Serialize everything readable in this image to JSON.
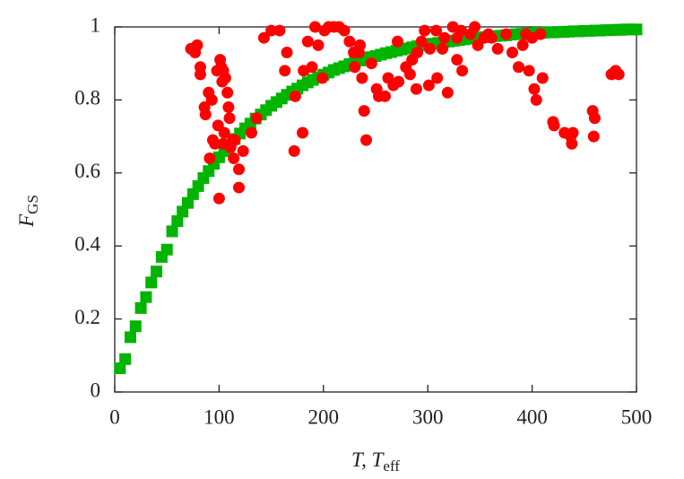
{
  "chart_data": {
    "type": "scatter",
    "xlabel": {
      "text": "T, T",
      "subscript": "eff"
    },
    "ylabel": {
      "text": "F",
      "subscript": "GS"
    },
    "xlim": [
      0,
      500
    ],
    "xticks": [
      0,
      100,
      200,
      300,
      400,
      500
    ],
    "ylim": [
      0,
      1
    ],
    "yticks": [
      0,
      0.2,
      0.4,
      0.6,
      0.8,
      1
    ],
    "series": [
      {
        "color": "#00b400",
        "marker": "square",
        "x": [
          5,
          10,
          15,
          20,
          25,
          30,
          35,
          40,
          45,
          50,
          55,
          60,
          65,
          70,
          75,
          80,
          85,
          90,
          95,
          100,
          105,
          110,
          115,
          120,
          125,
          130,
          135,
          140,
          145,
          150,
          155,
          160,
          165,
          170,
          175,
          180,
          185,
          190,
          195,
          200,
          205,
          210,
          215,
          220,
          225,
          230,
          235,
          240,
          245,
          250,
          255,
          260,
          265,
          270,
          275,
          280,
          285,
          290,
          295,
          300,
          305,
          310,
          315,
          320,
          325,
          330,
          335,
          340,
          345,
          350,
          355,
          360,
          365,
          370,
          375,
          380,
          385,
          390,
          395,
          400,
          405,
          410,
          415,
          420,
          425,
          430,
          435,
          440,
          445,
          450,
          455,
          460,
          465,
          470,
          475,
          480,
          485,
          490,
          495,
          500
        ],
        "values": [
          0.065,
          0.09,
          0.15,
          0.18,
          0.23,
          0.26,
          0.3,
          0.33,
          0.37,
          0.39,
          0.44,
          0.468,
          0.494,
          0.518,
          0.542,
          0.564,
          0.586,
          0.605,
          0.625,
          0.643,
          0.66,
          0.677,
          0.693,
          0.708,
          0.722,
          0.735,
          0.749,
          0.76,
          0.772,
          0.784,
          0.794,
          0.804,
          0.814,
          0.823,
          0.831,
          0.84,
          0.848,
          0.855,
          0.862,
          0.869,
          0.875,
          0.882,
          0.887,
          0.892,
          0.898,
          0.903,
          0.908,
          0.912,
          0.917,
          0.92,
          0.924,
          0.928,
          0.931,
          0.935,
          0.938,
          0.941,
          0.944,
          0.947,
          0.95,
          0.952,
          0.954,
          0.956,
          0.958,
          0.96,
          0.962,
          0.964,
          0.966,
          0.968,
          0.969,
          0.971,
          0.972,
          0.974,
          0.975,
          0.976,
          0.977,
          0.979,
          0.98,
          0.981,
          0.982,
          0.983,
          0.984,
          0.984,
          0.985,
          0.985,
          0.986,
          0.986,
          0.987,
          0.988,
          0.988,
          0.989,
          0.989,
          0.99,
          0.99,
          0.991,
          0.991,
          0.992,
          0.992,
          0.993,
          0.993,
          0.993
        ]
      },
      {
        "color": "#ff0000",
        "marker": "circle",
        "x": [
          73,
          79,
          77,
          82,
          82,
          86,
          87,
          90,
          93,
          91,
          94,
          96,
          98,
          99,
          100,
          101,
          102,
          103,
          104,
          105,
          104,
          106,
          108,
          109,
          110,
          111,
          113,
          114,
          115,
          119,
          119,
          123,
          131,
          136,
          143,
          150,
          158,
          163,
          165,
          173,
          172,
          180,
          181,
          185,
          189,
          192,
          195,
          199,
          201,
          205,
          210,
          215,
          220,
          225,
          229,
          230,
          234,
          235,
          237,
          239,
          241,
          246,
          251,
          253,
          259,
          262,
          267,
          271,
          272,
          279,
          283,
          285,
          289,
          290,
          294,
          297,
          301,
          302,
          308,
          309,
          314,
          316,
          319,
          324,
          328,
          328,
          332,
          333,
          341,
          345,
          348,
          354,
          358,
          361,
          367,
          375,
          381,
          387,
          391,
          394,
          397,
          400,
          402,
          404,
          408,
          410,
          420,
          421,
          431,
          437,
          438,
          439,
          458,
          459,
          460,
          476,
          480,
          483
        ],
        "values": [
          0.94,
          0.95,
          0.93,
          0.89,
          0.87,
          0.78,
          0.76,
          0.82,
          0.8,
          0.64,
          0.69,
          0.68,
          0.88,
          0.73,
          0.53,
          0.91,
          0.89,
          0.85,
          0.68,
          0.71,
          0.88,
          0.86,
          0.82,
          0.78,
          0.75,
          0.67,
          0.69,
          0.64,
          0.69,
          0.61,
          0.56,
          0.66,
          0.71,
          0.75,
          0.97,
          0.99,
          0.99,
          0.88,
          0.93,
          0.81,
          0.66,
          0.71,
          0.88,
          0.96,
          0.89,
          1.0,
          0.95,
          0.86,
          0.99,
          1.0,
          1.0,
          1.0,
          0.99,
          0.96,
          0.93,
          0.89,
          0.93,
          0.95,
          0.86,
          0.77,
          0.69,
          0.9,
          0.83,
          0.81,
          0.81,
          0.86,
          0.84,
          0.96,
          0.85,
          0.89,
          0.87,
          0.91,
          0.83,
          0.93,
          0.96,
          0.99,
          0.84,
          0.94,
          0.99,
          0.86,
          0.94,
          0.97,
          0.82,
          1.0,
          0.97,
          0.91,
          0.99,
          0.88,
          0.98,
          1.0,
          0.95,
          0.97,
          0.98,
          0.97,
          0.94,
          0.98,
          0.93,
          0.89,
          0.95,
          0.98,
          0.88,
          0.97,
          0.83,
          0.8,
          0.98,
          0.86,
          0.74,
          0.73,
          0.71,
          0.7,
          0.68,
          0.71,
          0.77,
          0.7,
          0.75,
          0.87,
          0.88,
          0.87
        ]
      }
    ]
  }
}
